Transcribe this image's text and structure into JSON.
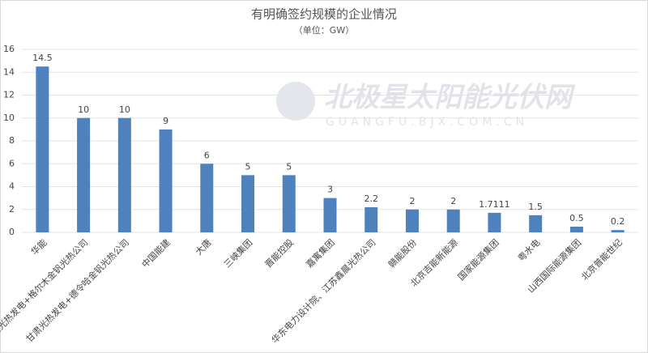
{
  "chart_data": {
    "type": "bar",
    "title": "有明确签约规模的企业情况",
    "subtitle": "（单位：GW）",
    "watermark": "北极星太阳能光伏网",
    "watermark_sub": "GUANGFU.BJX.COM.CN",
    "categories": [
      "华能",
      "甘肃光热发电+格尔木金钒光热公司",
      "甘肃光热发电+德令哈金钒光热公司",
      "中国能建",
      "大唐",
      "三峡集团",
      "晋能控股",
      "嘉寓集团",
      "华东电力设计院、江苏鑫晨光热公司",
      "赣能股份",
      "北京吉能新能源",
      "国家能源集团",
      "粤水电",
      "山西国际能源集团",
      "北京普能世纪"
    ],
    "values": [
      14.5,
      10,
      10,
      9,
      6,
      5,
      5,
      3,
      2.2,
      2,
      2,
      1.7111,
      1.5,
      0.5,
      0.2
    ],
    "color": "#4f81bd",
    "ylim": [
      0,
      16
    ],
    "yticks": [
      0,
      2,
      4,
      6,
      8,
      10,
      12,
      14,
      16
    ],
    "grid": true
  }
}
